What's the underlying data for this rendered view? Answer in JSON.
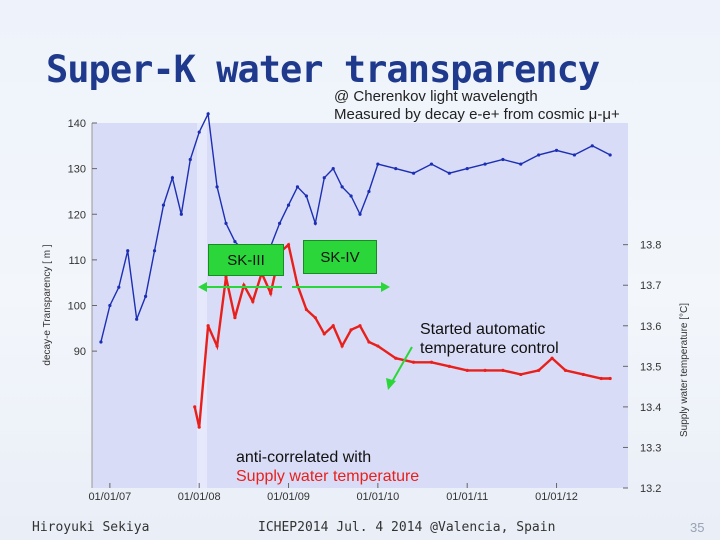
{
  "title": "Super-K water transparency",
  "subtitle_line1": "@ Cherenkov light wavelength",
  "subtitle_line2": "Measured by decay e-e+ from cosmic μ-μ+",
  "labels": {
    "sk3": "SK-III",
    "sk4": "SK-IV",
    "annotation_control_line1": "Started automatic",
    "annotation_control_line2": "temperature control",
    "annotation_anticorr_line1": "anti-correlated with",
    "annotation_anticorr_line2": "Supply water temperature"
  },
  "footer": {
    "author": "Hiroyuki Sekiya",
    "event": "ICHEP2014 Jul. 4 2014 @Valencia, Spain",
    "page": "35"
  },
  "colors": {
    "transparency": "#1c2fb4",
    "temperature": "#e8201c",
    "plot_bg": "#d9dcf6",
    "badge": "#2bd63a"
  },
  "chart_data": {
    "type": "line",
    "xlabel": "",
    "ylabel_left": "decay-e Transparency [ m ]",
    "ylabel_right": "Supply water temperature [°C]",
    "x_ticks": [
      "01/01/07",
      "01/01/08",
      "01/01/09",
      "01/01/10",
      "01/01/11",
      "01/01/12"
    ],
    "y_left_ticks": [
      90,
      100,
      110,
      120,
      130,
      140
    ],
    "y_right_ticks": [
      13.2,
      13.3,
      13.4,
      13.5,
      13.6,
      13.7,
      13.8
    ],
    "xlim": [
      2006.8,
      2012.8
    ],
    "ylim_left": [
      60,
      140
    ],
    "ylim_right": [
      13.2,
      14.1
    ],
    "grid": false,
    "series": [
      {
        "name": "decay-e Transparency",
        "axis": "left",
        "x": [
          2006.9,
          2007.0,
          2007.1,
          2007.2,
          2007.3,
          2007.4,
          2007.5,
          2007.6,
          2007.7,
          2007.8,
          2007.9,
          2008.0,
          2008.1,
          2008.2,
          2008.3,
          2008.4,
          2008.5,
          2008.6,
          2008.7,
          2008.8,
          2008.9,
          2009.0,
          2009.1,
          2009.2,
          2009.3,
          2009.4,
          2009.5,
          2009.6,
          2009.7,
          2009.8,
          2009.9,
          2010.0,
          2010.2,
          2010.4,
          2010.6,
          2010.8,
          2011.0,
          2011.2,
          2011.4,
          2011.6,
          2011.8,
          2012.0,
          2012.2,
          2012.4,
          2012.6
        ],
        "y": [
          92,
          100,
          104,
          112,
          97,
          102,
          112,
          122,
          128,
          120,
          132,
          138,
          142,
          126,
          118,
          114,
          112,
          110,
          108,
          113,
          118,
          122,
          126,
          124,
          118,
          128,
          130,
          126,
          124,
          120,
          125,
          131,
          130,
          129,
          131,
          129,
          130,
          131,
          132,
          131,
          133,
          134,
          133,
          135,
          133
        ]
      },
      {
        "name": "Supply water temperature",
        "axis": "right",
        "x": [
          2007.95,
          2008.0,
          2008.1,
          2008.2,
          2008.3,
          2008.4,
          2008.5,
          2008.6,
          2008.7,
          2008.8,
          2008.9,
          2009.0,
          2009.1,
          2009.2,
          2009.3,
          2009.4,
          2009.5,
          2009.6,
          2009.7,
          2009.8,
          2009.9,
          2010.0,
          2010.2,
          2010.4,
          2010.6,
          2010.8,
          2011.0,
          2011.2,
          2011.4,
          2011.6,
          2011.8,
          2011.95,
          2012.1,
          2012.3,
          2012.5,
          2012.6
        ],
        "y": [
          13.4,
          13.35,
          13.6,
          13.55,
          13.72,
          13.62,
          13.7,
          13.66,
          13.73,
          13.68,
          13.78,
          13.8,
          13.7,
          13.64,
          13.62,
          13.58,
          13.6,
          13.55,
          13.59,
          13.6,
          13.56,
          13.55,
          13.52,
          13.51,
          13.51,
          13.5,
          13.49,
          13.49,
          13.49,
          13.48,
          13.49,
          13.52,
          13.49,
          13.48,
          13.47,
          13.47
        ]
      }
    ]
  }
}
